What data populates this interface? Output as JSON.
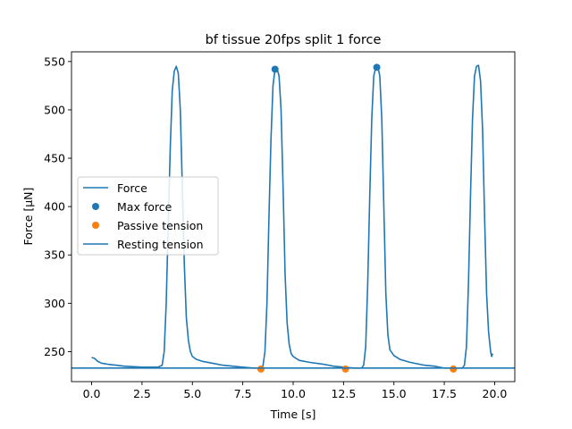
{
  "chart_data": {
    "type": "line",
    "title": "bf tissue 20fps split 1 force",
    "xlabel": "Time [s]",
    "ylabel": "Force [µN]",
    "xlim": [
      -1.0,
      21.0
    ],
    "ylim": [
      219,
      560
    ],
    "xticks": [
      0.0,
      2.5,
      5.0,
      7.5,
      10.0,
      12.5,
      15.0,
      17.5,
      20.0
    ],
    "xtick_labels": [
      "0.0",
      "2.5",
      "5.0",
      "7.5",
      "10.0",
      "12.5",
      "15.0",
      "17.5",
      "20.0"
    ],
    "yticks": [
      250,
      300,
      350,
      400,
      450,
      500,
      550
    ],
    "ytick_labels": [
      "250",
      "300",
      "350",
      "400",
      "450",
      "500",
      "550"
    ],
    "grid": false,
    "legend_position": "center-left",
    "series": [
      {
        "name": "Force",
        "kind": "line",
        "color": "#1f77b4",
        "x": [
          0.0,
          0.15,
          0.3,
          0.5,
          0.8,
          1.2,
          1.6,
          2.0,
          2.5,
          3.0,
          3.3,
          3.5,
          3.6,
          3.7,
          3.8,
          3.9,
          4.0,
          4.1,
          4.2,
          4.3,
          4.4,
          4.5,
          4.6,
          4.7,
          4.8,
          4.9,
          5.0,
          5.2,
          5.5,
          6.0,
          6.5,
          7.0,
          7.5,
          8.0,
          8.4,
          8.5,
          8.6,
          8.7,
          8.8,
          8.9,
          9.0,
          9.1,
          9.2,
          9.3,
          9.4,
          9.5,
          9.6,
          9.7,
          9.8,
          9.9,
          10.0,
          10.3,
          10.8,
          11.5,
          12.0,
          12.5,
          13.0,
          13.4,
          13.5,
          13.6,
          13.7,
          13.8,
          13.9,
          14.0,
          14.1,
          14.2,
          14.3,
          14.4,
          14.5,
          14.6,
          14.7,
          14.8,
          15.0,
          15.3,
          15.8,
          16.5,
          17.0,
          17.5,
          18.0,
          18.4,
          18.5,
          18.6,
          18.7,
          18.8,
          18.9,
          19.0,
          19.1,
          19.2,
          19.3,
          19.4,
          19.5,
          19.6,
          19.7,
          19.8,
          19.85,
          19.9
        ],
        "y": [
          244,
          243,
          240,
          238,
          237,
          236,
          235,
          234.5,
          234,
          234,
          234,
          236,
          250,
          300,
          380,
          460,
          520,
          540,
          545,
          538,
          500,
          420,
          340,
          285,
          262,
          250,
          245,
          242,
          240,
          238,
          236,
          235,
          234,
          233,
          233,
          235,
          250,
          300,
          390,
          470,
          525,
          542,
          543,
          535,
          500,
          420,
          330,
          280,
          258,
          248,
          245,
          241,
          239,
          237,
          235,
          234,
          233,
          233,
          236,
          255,
          320,
          410,
          490,
          535,
          544,
          545,
          535,
          490,
          400,
          310,
          268,
          252,
          246,
          242,
          239,
          236,
          235,
          233,
          233,
          233,
          236,
          255,
          320,
          410,
          490,
          535,
          545,
          546,
          530,
          480,
          390,
          310,
          270,
          250,
          245,
          248
        ]
      },
      {
        "name": "Max force",
        "kind": "scatter",
        "color": "#1f77b4",
        "x": [
          9.1,
          14.15
        ],
        "y": [
          542,
          544
        ]
      },
      {
        "name": "Passive tension",
        "kind": "scatter",
        "color": "#ff7f0e",
        "x": [
          8.4,
          12.6,
          17.95
        ],
        "y": [
          232,
          232,
          232
        ]
      },
      {
        "name": "Resting tension",
        "kind": "hline",
        "color": "#1f77b4",
        "y": 233
      }
    ]
  }
}
